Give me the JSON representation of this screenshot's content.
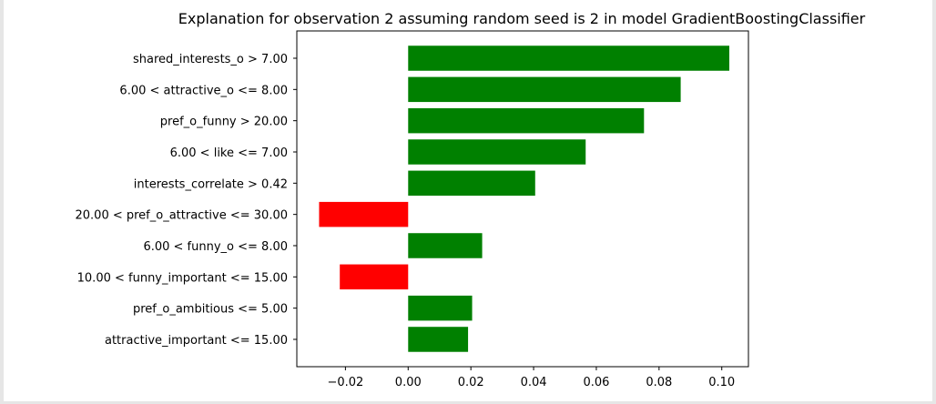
{
  "chart_data": {
    "type": "bar",
    "orientation": "horizontal",
    "title": "Explanation for observation 2 assuming random seed is 2 in model GradientBoostingClassifier",
    "xlabel": "",
    "ylabel": "",
    "categories": [
      "shared_interests_o > 7.00",
      "6.00 < attractive_o <= 8.00",
      "pref_o_funny > 20.00",
      "6.00 < like <= 7.00",
      "interests_correlate > 0.42",
      "20.00 < pref_o_attractive <= 30.00",
      "6.00 < funny_o <= 8.00",
      "10.00 < funny_important <= 15.00",
      "pref_o_ambitious <= 5.00",
      "attractive_important <= 15.00"
    ],
    "values": [
      0.1024,
      0.0869,
      0.0752,
      0.0566,
      0.0405,
      -0.0284,
      0.0236,
      -0.0218,
      0.0204,
      0.0191
    ],
    "xlim": [
      -0.0355,
      0.1085
    ],
    "xticks": [
      -0.02,
      0.0,
      0.02,
      0.04,
      0.06,
      0.08,
      0.1
    ],
    "xtick_labels": [
      "−0.02",
      "0.00",
      "0.02",
      "0.04",
      "0.06",
      "0.08",
      "0.10"
    ],
    "positive_color": "#008000",
    "negative_color": "#ff0000",
    "grid": false,
    "legend": "none"
  }
}
